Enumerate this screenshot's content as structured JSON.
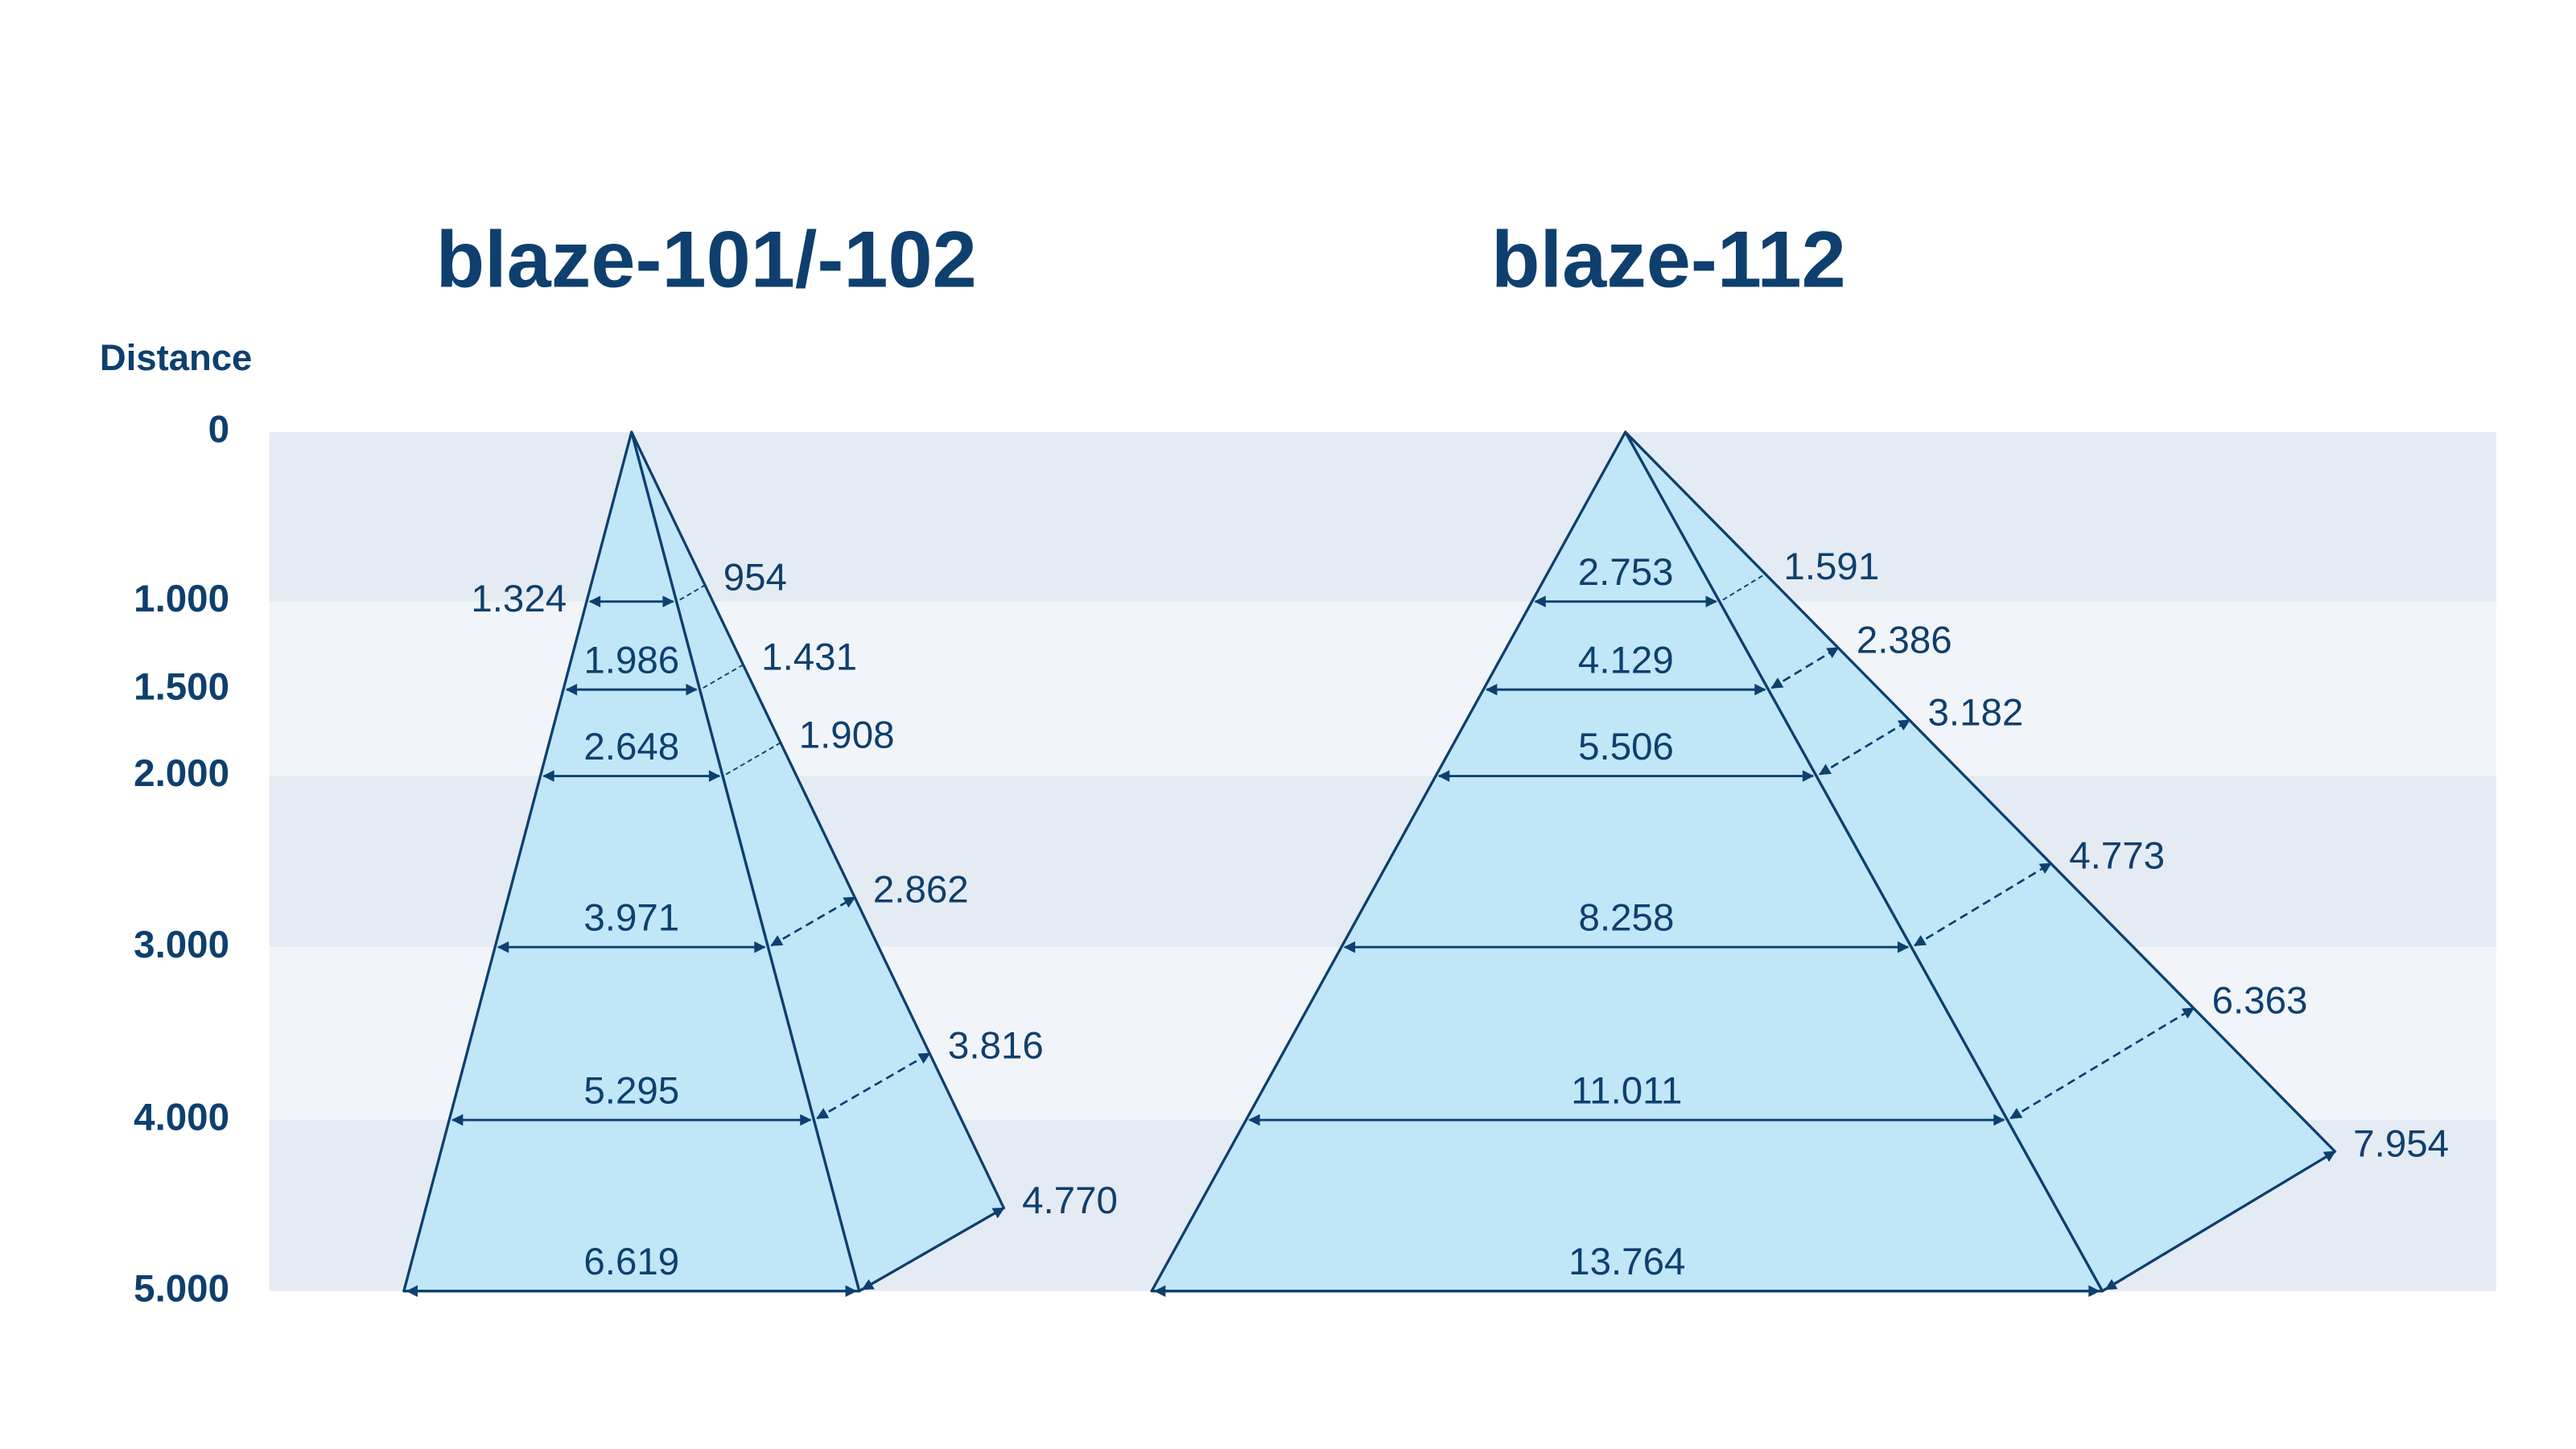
{
  "distance_axis": {
    "label": "Distance",
    "levels": [
      "0",
      "1.000",
      "1.500",
      "2.000",
      "3.000",
      "4.000",
      "5.000"
    ]
  },
  "pyramids": [
    {
      "title": "blaze-101/-102",
      "widths": [
        "1.324",
        "1.986",
        "2.648",
        "3.971",
        "5.295",
        "6.619"
      ],
      "depths": [
        "954",
        "1.431",
        "1.908",
        "2.862",
        "3.816",
        "4.770"
      ]
    },
    {
      "title": "blaze-112",
      "widths": [
        "2.753",
        "4.129",
        "5.506",
        "8.258",
        "11.011",
        "13.764"
      ],
      "depths": [
        "1.591",
        "2.386",
        "3.182",
        "4.773",
        "6.363",
        "7.954"
      ]
    }
  ]
}
